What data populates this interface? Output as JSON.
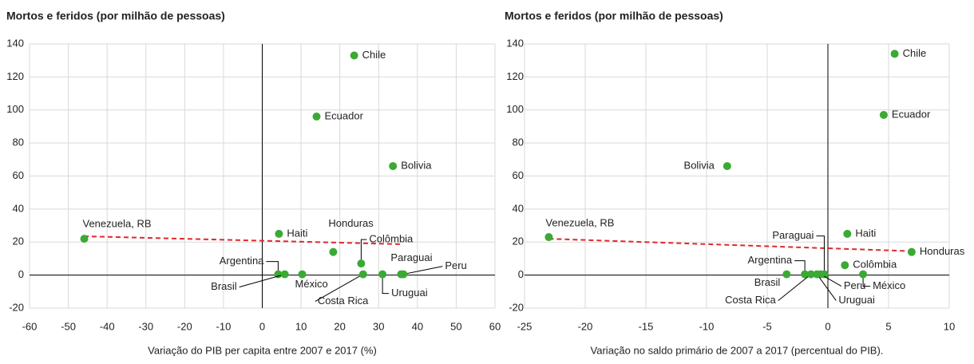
{
  "chart_data": [
    {
      "type": "scatter",
      "title": "Mortos e feridos (por milhão de pessoas)",
      "xlabel": "Variação do PIB per capita entre 2007 e 2017 (%)",
      "labels": [
        "Venezuela, RB",
        "Haiti",
        "Chile",
        "Ecuador",
        "Bolivia",
        "Honduras",
        "Colômbia",
        "Argentina",
        "Brasil",
        "México",
        "Costa Rica",
        "Uruguai",
        "Paraguai",
        "Peru"
      ],
      "x": [
        -45.9,
        4.3,
        23.7,
        14,
        33.7,
        18.3,
        25.5,
        4.1,
        5.8,
        10.3,
        26,
        31,
        35.8,
        36.4
      ],
      "y": [
        22,
        25,
        133,
        96,
        66,
        14,
        7,
        0.5,
        0.5,
        0.5,
        0.5,
        0.5,
        0.5,
        0.5
      ],
      "color": "#3aaa35",
      "trendline": {
        "x": [
          -46,
          36
        ],
        "y": [
          23.5,
          18.7
        ],
        "color": "#e0282e"
      },
      "xlim": [
        -60,
        60
      ],
      "xticks": [
        -60,
        -50,
        -40,
        -30,
        -20,
        -10,
        0,
        10,
        20,
        30,
        40,
        50,
        60
      ],
      "ylim": [
        -20,
        140
      ],
      "yticks": [
        -20,
        0,
        20,
        40,
        60,
        80,
        100,
        120,
        140
      ],
      "grid": true
    },
    {
      "type": "scatter",
      "title": "Mortos e feridos (por milhão de pessoas)",
      "xlabel": "Variação no saldo primário de 2007 a 2017 (percentual do PIB).",
      "labels": [
        "Venezuela, RB",
        "Bolivia",
        "Chile",
        "Ecuador",
        "Haiti",
        "Honduras",
        "Colômbia",
        "Paraguai",
        "Argentina",
        "Brasil",
        "Costa Rica",
        "Peru",
        "Uruguai",
        "México"
      ],
      "x": [
        -23,
        -8.3,
        5.5,
        4.6,
        1.6,
        6.9,
        1.4,
        -0.3,
        -1.9,
        -3.4,
        -1.4,
        -0.6,
        -0.9,
        2.9
      ],
      "y": [
        23,
        66,
        134,
        97,
        25,
        14,
        6,
        0.5,
        0.5,
        0.5,
        0.5,
        0.5,
        0.5,
        0.5
      ],
      "color": "#3aaa35",
      "trendline": {
        "x": [
          -23,
          6.9
        ],
        "y": [
          22,
          14.5
        ],
        "color": "#e0282e"
      },
      "xlim": [
        -25,
        10
      ],
      "xticks": [
        -25,
        -20,
        -15,
        -10,
        -5,
        0,
        5,
        10
      ],
      "ylim": [
        -20,
        140
      ],
      "yticks": [
        -20,
        0,
        20,
        40,
        60,
        80,
        100,
        120,
        140
      ],
      "grid": true
    }
  ]
}
